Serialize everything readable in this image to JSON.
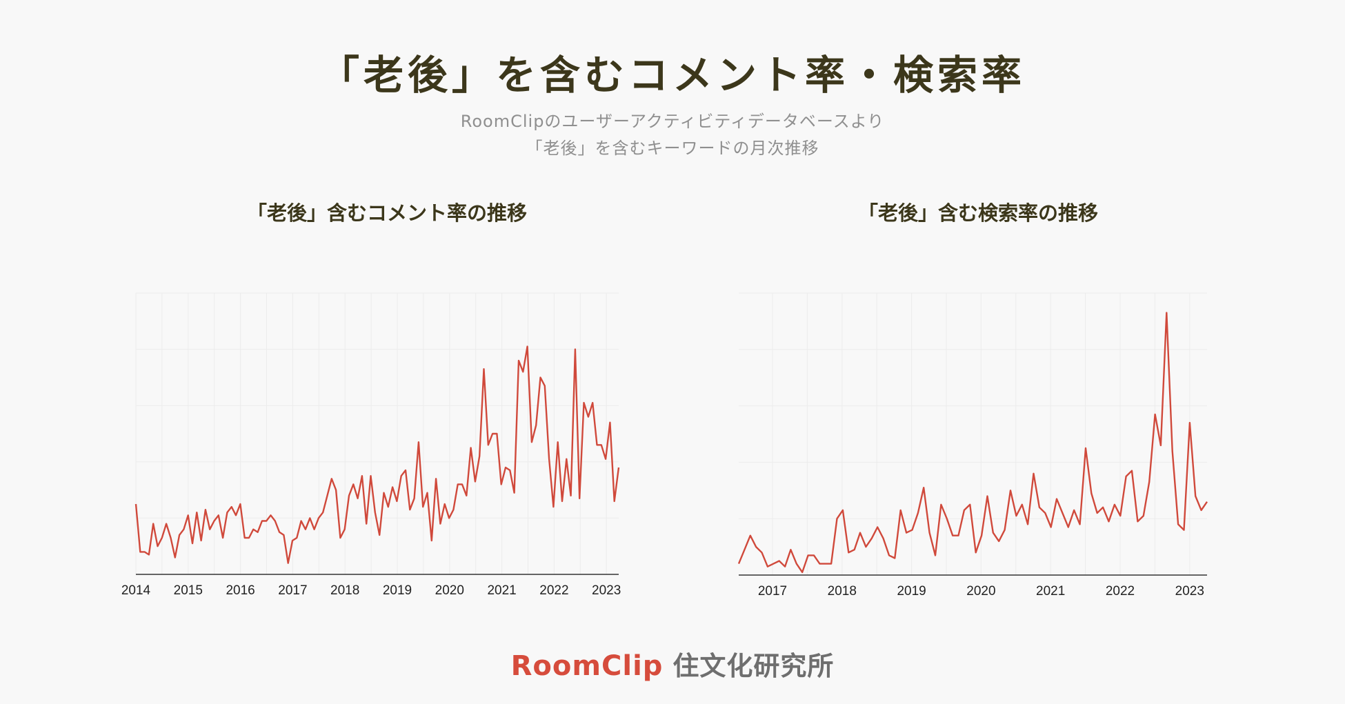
{
  "title": "「老後」を含むコメント率・検索率",
  "subtitle_lines": [
    "RoomClipのユーザーアクティビティデータベースより",
    "「老後」を含むキーワードの月次推移"
  ],
  "logo": {
    "brand": "RoomClip",
    "lab": "住文化研究所"
  },
  "colors": {
    "line": "#d0493b",
    "grid": "#ececec",
    "axis": "#333333",
    "background": "#f8f8f8"
  },
  "chart_data": [
    {
      "type": "line",
      "title": "「老後」含むコメント率の推移",
      "xlabel": "",
      "ylabel": "",
      "x_ticks": [
        "2014",
        "2015",
        "2016",
        "2017",
        "2018",
        "2019",
        "2020",
        "2021",
        "2022",
        "2023"
      ],
      "x_start": "2014-01",
      "x_end": "2023-05",
      "ylim": [
        0,
        1
      ],
      "grid": true,
      "y_gridlines": 5,
      "series": [
        {
          "values": [
            0.25,
            0.08,
            0.08,
            0.07,
            0.18,
            0.1,
            0.13,
            0.18,
            0.13,
            0.06,
            0.14,
            0.16,
            0.21,
            0.11,
            0.22,
            0.12,
            0.23,
            0.16,
            0.19,
            0.21,
            0.13,
            0.22,
            0.24,
            0.21,
            0.25,
            0.13,
            0.13,
            0.16,
            0.15,
            0.19,
            0.19,
            0.21,
            0.19,
            0.15,
            0.14,
            0.04,
            0.12,
            0.13,
            0.19,
            0.16,
            0.2,
            0.16,
            0.2,
            0.22,
            0.28,
            0.34,
            0.3,
            0.13,
            0.16,
            0.28,
            0.32,
            0.27,
            0.35,
            0.18,
            0.35,
            0.22,
            0.14,
            0.29,
            0.24,
            0.31,
            0.26,
            0.35,
            0.37,
            0.23,
            0.27,
            0.47,
            0.24,
            0.29,
            0.12,
            0.34,
            0.18,
            0.25,
            0.2,
            0.23,
            0.32,
            0.32,
            0.28,
            0.45,
            0.33,
            0.42,
            0.73,
            0.46,
            0.5,
            0.5,
            0.32,
            0.38,
            0.37,
            0.29,
            0.76,
            0.72,
            0.81,
            0.47,
            0.53,
            0.7,
            0.67,
            0.41,
            0.24,
            0.47,
            0.26,
            0.41,
            0.28,
            0.8,
            0.27,
            0.61,
            0.56,
            0.61,
            0.46,
            0.46,
            0.41,
            0.54,
            0.26,
            0.38
          ]
        }
      ]
    },
    {
      "type": "line",
      "title": "「老後」含む検索率の推移",
      "xlabel": "",
      "ylabel": "",
      "x_ticks": [
        "2017",
        "2018",
        "2019",
        "2020",
        "2021",
        "2022",
        "2023"
      ],
      "x_start": "2016-08",
      "x_end": "2023-04",
      "ylim": [
        0,
        1
      ],
      "grid": true,
      "y_gridlines": 5,
      "series": [
        {
          "values": [
            0.04,
            0.09,
            0.14,
            0.1,
            0.08,
            0.03,
            0.04,
            0.05,
            0.03,
            0.09,
            0.04,
            0.01,
            0.07,
            0.07,
            0.04,
            0.04,
            0.04,
            0.2,
            0.23,
            0.08,
            0.09,
            0.15,
            0.1,
            0.13,
            0.17,
            0.13,
            0.07,
            0.06,
            0.23,
            0.15,
            0.16,
            0.22,
            0.31,
            0.15,
            0.07,
            0.25,
            0.2,
            0.14,
            0.14,
            0.23,
            0.25,
            0.08,
            0.14,
            0.28,
            0.15,
            0.12,
            0.16,
            0.3,
            0.21,
            0.25,
            0.18,
            0.36,
            0.24,
            0.22,
            0.17,
            0.27,
            0.22,
            0.17,
            0.23,
            0.18,
            0.45,
            0.29,
            0.22,
            0.24,
            0.19,
            0.25,
            0.21,
            0.35,
            0.37,
            0.19,
            0.21,
            0.33,
            0.57,
            0.46,
            0.93,
            0.44,
            0.18,
            0.16,
            0.54,
            0.28,
            0.23,
            0.26
          ]
        }
      ]
    }
  ]
}
